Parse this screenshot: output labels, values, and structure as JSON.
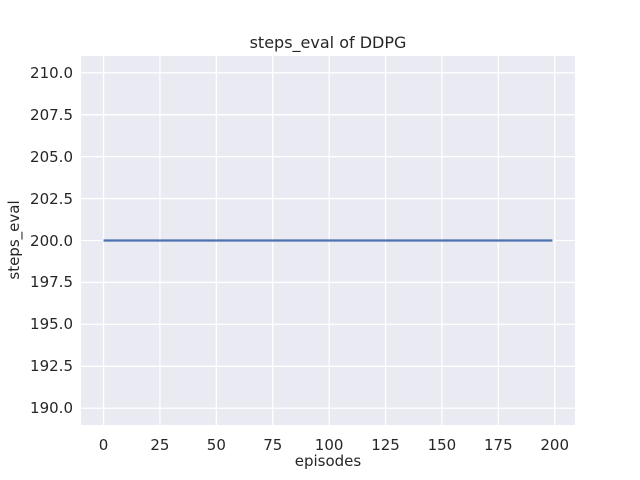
{
  "chart_data": {
    "type": "line",
    "title": "steps_eval of DDPG",
    "xlabel": "episodes",
    "ylabel": "steps_eval",
    "x_ticks": [
      0,
      25,
      50,
      75,
      100,
      125,
      150,
      175,
      200
    ],
    "x_tick_labels": [
      "0",
      "25",
      "50",
      "75",
      "100",
      "125",
      "150",
      "175",
      "200"
    ],
    "y_ticks": [
      190.0,
      192.5,
      195.0,
      197.5,
      200.0,
      202.5,
      205.0,
      207.5,
      210.0
    ],
    "y_tick_labels": [
      "190.0",
      "192.5",
      "195.0",
      "197.5",
      "200.0",
      "202.5",
      "205.0",
      "207.5",
      "210.0"
    ],
    "xlim": [
      -10,
      209
    ],
    "ylim": [
      189,
      211
    ],
    "grid": true,
    "legend": false,
    "style": {
      "figure_background": "#ffffff",
      "axes_background": "#eaeaf2",
      "grid_color": "#ffffff",
      "text_color": "#262626",
      "line_color": "#4c72b0"
    },
    "series": [
      {
        "name": "steps_eval",
        "color": "#4c72b0",
        "x": [
          0,
          199
        ],
        "y": [
          200,
          200
        ]
      }
    ]
  }
}
